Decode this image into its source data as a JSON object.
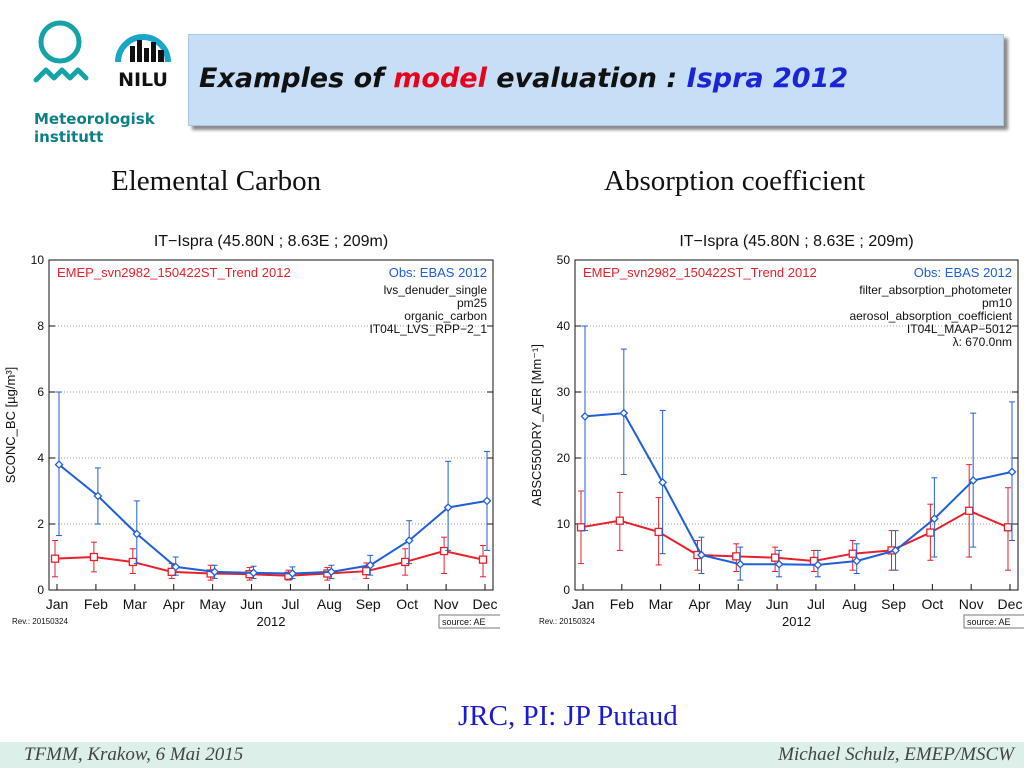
{
  "header": {
    "title_prefix": "Examples of ",
    "title_highlight": "model",
    "title_middle": " evaluation : ",
    "title_site": "Ispra 2012"
  },
  "logos": {
    "met_line1": "Meteorologisk",
    "met_line2": "institutt",
    "nilu": "NILU"
  },
  "headings": {
    "left": "Elemental Carbon",
    "right": "Absorption coefficient"
  },
  "credit": "JRC, PI: JP Putaud",
  "footer": {
    "left": "TFMM, Krakow, 6 Mai 2015",
    "right": "Michael Schulz, EMEP/MSCW"
  },
  "colors": {
    "model": "#e8202a",
    "obs": "#1f5fd8",
    "title_highlight": "#e8001c",
    "title_site": "#1a26d6"
  },
  "chart_data": [
    {
      "type": "line",
      "title": "IT−Ispra (45.80N ; 8.63E ; 209m)",
      "ylabel": "SCONC_BC [µg/m³]",
      "xlabel": "2012",
      "ylim": [
        0,
        10
      ],
      "yticks": [
        0,
        2,
        4,
        6,
        8,
        10
      ],
      "grid": true,
      "categories": [
        "Jan",
        "Feb",
        "Mar",
        "Apr",
        "May",
        "Jun",
        "Jul",
        "Aug",
        "Sep",
        "Oct",
        "Nov",
        "Dec"
      ],
      "model_label": "EMEP_svn2982_150422ST_Trend 2012",
      "obs_label": "Obs: EBAS 2012",
      "obs_info": [
        "lvs_denuder_single",
        "pm25",
        "organic_carbon",
        "IT04L_LVS_RPP−2_1"
      ],
      "revision": "Rev.: 20150324",
      "source": "source: AE",
      "series": [
        {
          "name": "EMEP_svn2982_150422ST_Trend 2012",
          "values": [
            0.95,
            1.0,
            0.85,
            0.55,
            0.5,
            0.48,
            0.43,
            0.5,
            0.57,
            0.85,
            1.18,
            0.92
          ],
          "err_low": [
            0.4,
            0.55,
            0.5,
            0.35,
            0.3,
            0.3,
            0.3,
            0.3,
            0.35,
            0.45,
            0.5,
            0.4
          ],
          "err_high": [
            1.5,
            1.45,
            1.25,
            0.8,
            0.75,
            0.68,
            0.6,
            0.68,
            0.82,
            1.25,
            1.6,
            1.35
          ]
        },
        {
          "name": "Obs: EBAS 2012",
          "values": [
            3.8,
            2.85,
            1.7,
            0.7,
            0.55,
            0.52,
            0.5,
            0.55,
            0.75,
            1.5,
            2.5,
            2.7
          ],
          "err_low": [
            1.65,
            2.0,
            0.8,
            0.45,
            0.35,
            0.35,
            0.35,
            0.35,
            0.45,
            0.8,
            1.2,
            1.2
          ],
          "err_high": [
            6.0,
            3.7,
            2.7,
            1.0,
            0.75,
            0.72,
            0.7,
            0.75,
            1.05,
            2.1,
            3.9,
            4.2
          ]
        }
      ]
    },
    {
      "type": "line",
      "title": "IT−Ispra (45.80N ; 8.63E ; 209m)",
      "ylabel": "ABSC550DRY_AER [Mm⁻¹]",
      "xlabel": "2012",
      "ylim": [
        0,
        50
      ],
      "yticks": [
        0,
        10,
        20,
        30,
        40,
        50
      ],
      "grid": true,
      "categories": [
        "Jan",
        "Feb",
        "Mar",
        "Apr",
        "May",
        "Jun",
        "Jul",
        "Aug",
        "Sep",
        "Oct",
        "Nov",
        "Dec"
      ],
      "model_label": "EMEP_svn2982_150422ST_Trend 2012",
      "obs_label": "Obs: EBAS 2012",
      "obs_info": [
        "filter_absorption_photometer",
        "pm10",
        "aerosol_absorption_coefficient",
        "IT04L_MAAP−5012",
        "λ: 670.0nm"
      ],
      "revision": "Rev.: 20150324",
      "source": "source: AE",
      "series": [
        {
          "name": "EMEP_svn2982_150422ST_Trend 2012",
          "values": [
            9.5,
            10.5,
            8.8,
            5.3,
            5.1,
            4.9,
            4.4,
            5.5,
            6.0,
            8.7,
            12.0,
            9.5
          ],
          "err_low": [
            4.0,
            6.0,
            3.8,
            3.0,
            2.8,
            2.8,
            2.8,
            3.0,
            3.0,
            4.5,
            5.0,
            3.0
          ],
          "err_high": [
            15.0,
            14.8,
            14.0,
            7.5,
            7.0,
            6.5,
            6.0,
            7.5,
            9.0,
            13.0,
            19.0,
            15.5
          ]
        },
        {
          "name": "Obs: EBAS 2012",
          "values": [
            26.3,
            26.8,
            16.3,
            5.3,
            3.9,
            3.9,
            3.8,
            4.4,
            6.0,
            10.8,
            16.6,
            17.9
          ],
          "err_low": [
            9.0,
            17.5,
            5.5,
            2.5,
            1.5,
            2.0,
            2.0,
            2.5,
            3.0,
            5.0,
            6.5,
            7.5
          ],
          "err_high": [
            40.0,
            36.5,
            27.2,
            8.0,
            6.5,
            6.0,
            6.0,
            7.0,
            9.0,
            17.0,
            26.8,
            28.5
          ]
        }
      ]
    }
  ]
}
